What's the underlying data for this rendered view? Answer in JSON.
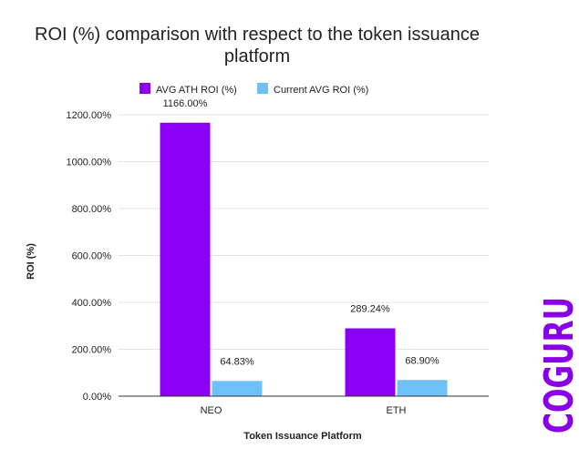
{
  "chart_data": {
    "type": "bar",
    "title": "ROI (%) comparison with respect to the token issuance platform",
    "title_lines": [
      "ROI (%) comparison with respect to the token issuance",
      "platform"
    ],
    "xlabel": "Token Issuance Platform",
    "ylabel": "ROI (%)",
    "categories": [
      "NEO",
      "ETH"
    ],
    "series": [
      {
        "name": "AVG ATH ROI (%)",
        "values": [
          1166.0,
          289.24
        ],
        "labels": [
          "1166.00%",
          "289.24%"
        ],
        "color": "#8b00f5"
      },
      {
        "name": "Current AVG ROI (%)",
        "values": [
          64.83,
          68.9
        ],
        "labels": [
          "64.83%",
          "68.90%"
        ],
        "color": "#6ec1f7"
      }
    ],
    "ylim": [
      0,
      1200
    ],
    "yticks": [
      0,
      200,
      400,
      600,
      800,
      1000,
      1200
    ],
    "ytick_labels": [
      "0.00%",
      "200.00%",
      "400.00%",
      "600.00%",
      "800.00%",
      "1000.00%",
      "1200.00%"
    ],
    "grid": true,
    "legend_position": "top"
  },
  "watermark": {
    "text": "COGURU",
    "color": "#8a00e6"
  }
}
